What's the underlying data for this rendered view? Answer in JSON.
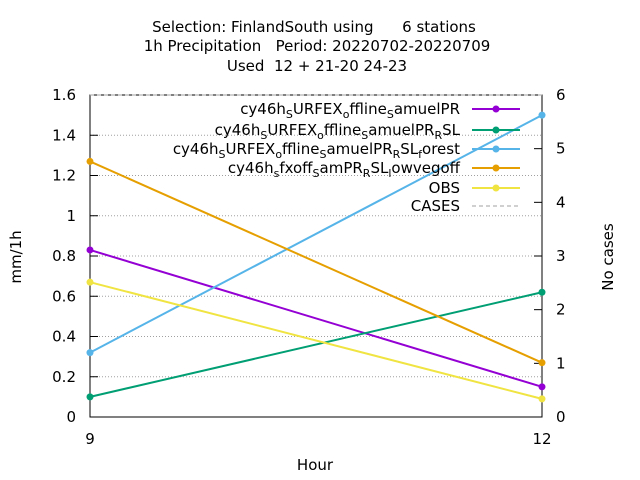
{
  "chart_data": {
    "type": "line",
    "title": {
      "line1": "Selection: FinlandSouth using      6 stations",
      "line2": "1h Precipitation   Period: 20220702-20220709",
      "line3": "Used  12 + 21-20 24-23"
    },
    "xlabel": "Hour",
    "ylabel": "mm/1h",
    "y2label": "No cases",
    "x": [
      9,
      12
    ],
    "xlim": [
      9,
      12
    ],
    "xticks": [
      "9",
      "12"
    ],
    "ylim": [
      0,
      1.6
    ],
    "yticks": [
      "0",
      "0.2",
      "0.4",
      "0.6",
      "0.8",
      "1",
      "1.2",
      "1.4",
      "1.6"
    ],
    "y2lim": [
      0,
      6
    ],
    "y2ticks": [
      "0",
      "1",
      "2",
      "3",
      "4",
      "5",
      "6"
    ],
    "grid": true,
    "legend_position": "top-right",
    "series": [
      {
        "name": "cy46h_SURFEX_offline_SamuelPR",
        "legend": [
          [
            "cy46h",
            ""
          ],
          [
            "S",
            "sub"
          ],
          [
            "URFEX",
            ""
          ],
          [
            "o",
            "sub"
          ],
          [
            "ffline",
            ""
          ],
          [
            "S",
            "sub"
          ],
          [
            "amuelPR",
            ""
          ]
        ],
        "color": "#9400d3",
        "values": [
          0.83,
          0.15
        ]
      },
      {
        "name": "cy46h_SURFEX_offline_SamuelPR_RSL",
        "legend": [
          [
            "cy46h",
            ""
          ],
          [
            "S",
            "sub"
          ],
          [
            "URFEX",
            ""
          ],
          [
            "o",
            "sub"
          ],
          [
            "ffline",
            ""
          ],
          [
            "S",
            "sub"
          ],
          [
            "amuelPR",
            ""
          ],
          [
            "R",
            "sub"
          ],
          [
            "SL",
            ""
          ]
        ],
        "color": "#009e73",
        "values": [
          0.1,
          0.62
        ]
      },
      {
        "name": "cy46h_SURFEX_offline_SamuelPR_RSL_forest",
        "legend": [
          [
            "cy46h",
            ""
          ],
          [
            "S",
            "sub"
          ],
          [
            "URFEX",
            ""
          ],
          [
            "o",
            "sub"
          ],
          [
            "ffline",
            ""
          ],
          [
            "S",
            "sub"
          ],
          [
            "amuelPR",
            ""
          ],
          [
            "R",
            "sub"
          ],
          [
            "SL",
            ""
          ],
          [
            "f",
            "sub"
          ],
          [
            "orest",
            ""
          ]
        ],
        "color": "#56b4e9",
        "values": [
          0.32,
          1.5
        ]
      },
      {
        "name": "cy46h_sfxoff_SamPR_RSL_lowvegoff",
        "legend": [
          [
            "cy46h",
            ""
          ],
          [
            "s",
            "sub"
          ],
          [
            "fxoff",
            ""
          ],
          [
            "S",
            "sub"
          ],
          [
            "amPR",
            ""
          ],
          [
            "R",
            "sub"
          ],
          [
            "SL",
            ""
          ],
          [
            "l",
            "sub"
          ],
          [
            "owvegoff",
            ""
          ]
        ],
        "color": "#e69f00",
        "values": [
          1.27,
          0.27
        ]
      },
      {
        "name": "OBS",
        "legend": [
          [
            "OBS",
            ""
          ]
        ],
        "color": "#f0e442",
        "values": [
          0.67,
          0.09
        ]
      },
      {
        "name": "CASES",
        "legend": [
          [
            "CASES",
            ""
          ]
        ],
        "color": "#a0a0a0",
        "dashed": true,
        "axis": "y2",
        "values": [
          6,
          6
        ]
      }
    ]
  }
}
